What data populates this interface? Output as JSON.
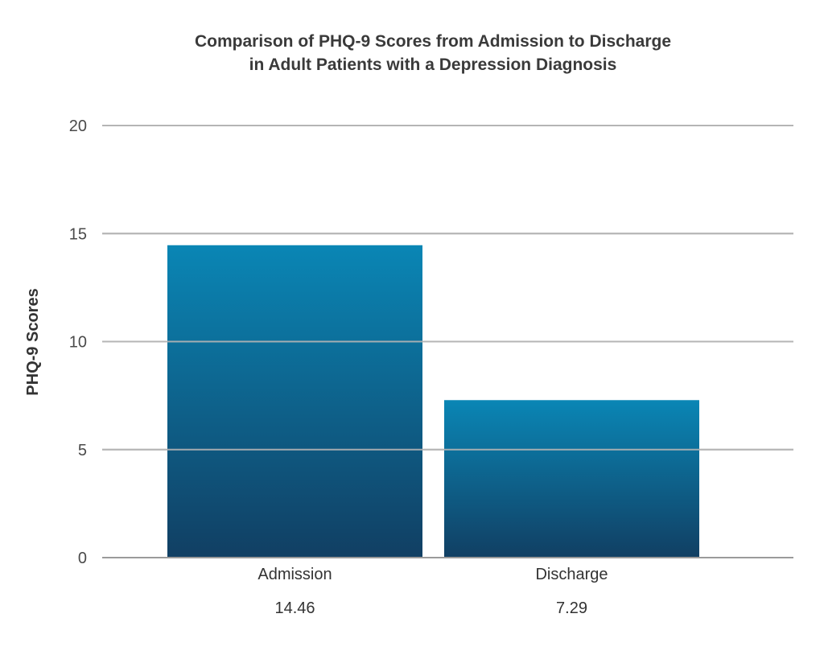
{
  "chart_data": {
    "type": "bar",
    "title_lines": [
      "Comparison of PHQ-9 Scores from Admission to Discharge",
      "in Adult Patients with a Depression Diagnosis"
    ],
    "xlabel": "",
    "ylabel": "PHQ-9 Scores",
    "categories": [
      "Admission",
      "Discharge"
    ],
    "values": [
      14.46,
      7.29
    ],
    "value_labels": [
      "14.46",
      "7.29"
    ],
    "ylim": [
      0,
      20
    ],
    "yticks": [
      "0",
      "5",
      "10",
      "15",
      "20"
    ],
    "grid": true,
    "legend": "none",
    "colors": {
      "bar_top": "#0a86b5",
      "bar_bottom": "#113f63",
      "grid": "#b5b5b5",
      "axis": "#9a9a9a"
    }
  }
}
